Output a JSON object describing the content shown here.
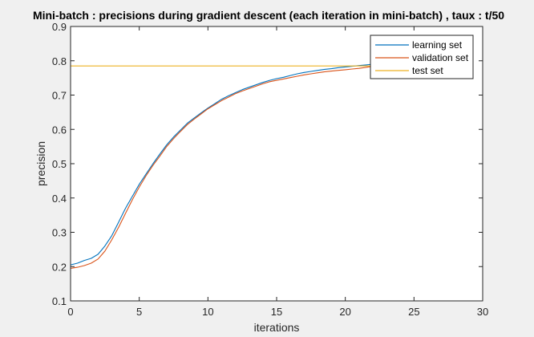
{
  "chart_data": {
    "type": "line",
    "title": "Mini-batch : precisions during gradient descent (each iteration in mini-batch) , taux : t/50",
    "xlabel": "iterations",
    "ylabel": "precision",
    "xlim": [
      0,
      30
    ],
    "ylim": [
      0.1,
      0.9
    ],
    "xticks": [
      "0",
      "5",
      "10",
      "15",
      "20",
      "25",
      "30"
    ],
    "yticks": [
      "0.1",
      "0.2",
      "0.3",
      "0.4",
      "0.5",
      "0.6",
      "0.7",
      "0.8",
      "0.9"
    ],
    "grid": false,
    "legend_position": "top-right",
    "series": [
      {
        "name": "learning set",
        "color": "#0072BD",
        "x": [
          0,
          0.5,
          1,
          1.5,
          2,
          2.5,
          3,
          3.5,
          4,
          4.5,
          5,
          5.5,
          6,
          6.5,
          7,
          7.5,
          8,
          8.5,
          9,
          9.5,
          10,
          10.5,
          11,
          11.5,
          12,
          12.5,
          13,
          13.5,
          14,
          14.5,
          15,
          15.5,
          16,
          16.5,
          17,
          17.5,
          18,
          18.5,
          19,
          19.5,
          20,
          20.5,
          21,
          21.5,
          22
        ],
        "y": [
          0.205,
          0.21,
          0.218,
          0.224,
          0.236,
          0.26,
          0.29,
          0.33,
          0.37,
          0.405,
          0.44,
          0.47,
          0.5,
          0.528,
          0.555,
          0.578,
          0.598,
          0.618,
          0.633,
          0.648,
          0.662,
          0.675,
          0.688,
          0.698,
          0.707,
          0.716,
          0.723,
          0.73,
          0.737,
          0.743,
          0.748,
          0.752,
          0.757,
          0.762,
          0.766,
          0.769,
          0.772,
          0.775,
          0.777,
          0.78,
          0.782,
          0.784,
          0.786,
          0.788,
          0.79
        ]
      },
      {
        "name": "validation set",
        "color": "#D95319",
        "x": [
          0,
          0.5,
          1,
          1.5,
          2,
          2.5,
          3,
          3.5,
          4,
          4.5,
          5,
          5.5,
          6,
          6.5,
          7,
          7.5,
          8,
          8.5,
          9,
          9.5,
          10,
          10.5,
          11,
          11.5,
          12,
          12.5,
          13,
          13.5,
          14,
          14.5,
          15,
          15.5,
          16,
          16.5,
          17,
          17.5,
          18,
          18.5,
          19,
          19.5,
          20,
          20.5,
          21,
          21.5,
          22
        ],
        "y": [
          0.195,
          0.198,
          0.203,
          0.21,
          0.222,
          0.245,
          0.278,
          0.315,
          0.355,
          0.395,
          0.432,
          0.465,
          0.495,
          0.522,
          0.55,
          0.573,
          0.594,
          0.614,
          0.63,
          0.645,
          0.66,
          0.672,
          0.684,
          0.694,
          0.704,
          0.712,
          0.719,
          0.726,
          0.733,
          0.739,
          0.743,
          0.747,
          0.751,
          0.755,
          0.759,
          0.762,
          0.765,
          0.768,
          0.77,
          0.772,
          0.774,
          0.776,
          0.778,
          0.781,
          0.784
        ]
      },
      {
        "name": "test set",
        "color": "#EDB120",
        "x": [
          0,
          22
        ],
        "y": [
          0.785,
          0.785
        ]
      }
    ]
  }
}
